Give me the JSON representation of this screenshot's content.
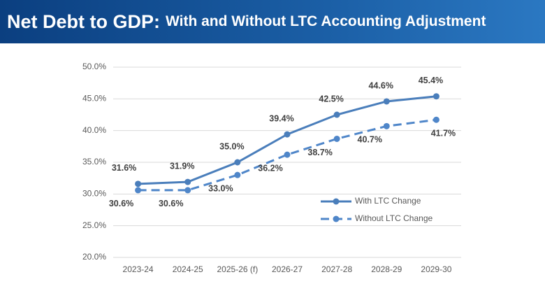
{
  "chart_data": {
    "type": "line",
    "title": "Net Debt to GDP:",
    "subtitle": "With and Without LTC Accounting Adjustment",
    "categories": [
      "2023-24",
      "2024-25",
      "2025-26 (f)",
      "2026-27",
      "2027-28",
      "2028-29",
      "2029-30"
    ],
    "series": [
      {
        "name": "With LTC Change",
        "color": "#4a7ebb",
        "dashed": false,
        "values": [
          31.6,
          31.9,
          35.0,
          39.4,
          42.5,
          44.6,
          45.4
        ],
        "value_labels": [
          "31.6%",
          "31.9%",
          "35.0%",
          "39.4%",
          "42.5%",
          "44.6%",
          "45.4%"
        ]
      },
      {
        "name": "Without LTC Change",
        "color": "#4f86c9",
        "dashed": true,
        "values": [
          30.6,
          30.6,
          33.0,
          36.2,
          38.7,
          40.7,
          41.7
        ],
        "value_labels": [
          "30.6%",
          "30.6%",
          "33.0%",
          "36.2%",
          "38.7%",
          "40.7%",
          "41.7%"
        ]
      }
    ],
    "ylim": [
      20,
      50
    ],
    "yticks": [
      {
        "value": 20,
        "label": "20.0%"
      },
      {
        "value": 25,
        "label": "25.0%"
      },
      {
        "value": 30,
        "label": "30.0%"
      },
      {
        "value": 35,
        "label": "35.0%"
      },
      {
        "value": 40,
        "label": "40.0%"
      },
      {
        "value": 45,
        "label": "45.0%"
      },
      {
        "value": 50,
        "label": "50.0%"
      }
    ],
    "grid": true,
    "legend": "lower right"
  }
}
